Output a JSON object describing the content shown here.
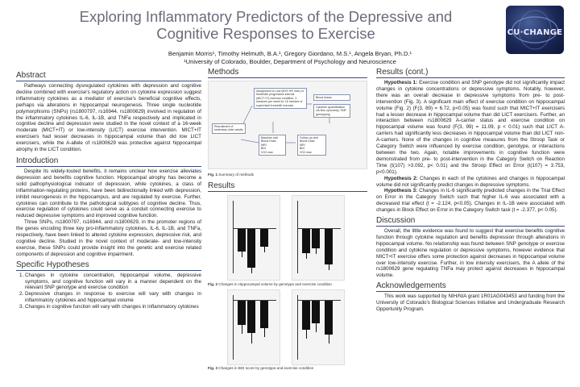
{
  "title": {
    "line1": "Exploring Inflammatory Predictors of the Depressive and",
    "line2": "Cognitive Responses to Exercise"
  },
  "authors": "Benjamin Morris¹, Timothy Helmuth, B.A.¹, Gregory Giordano, M.S.¹, Angela Bryan, Ph.D.¹",
  "affiliation": "¹University of Colorado, Boulder, Department of Psychology and Neuroscience",
  "logo": {
    "text": "CU·CHANGE",
    "icon": "cu-change-logo"
  },
  "sections": {
    "abstract": {
      "heading": "Abstract",
      "text": "Pathways connecting dysregulated cytokines with depression and cognitive decline combined with exercise's regulatory action on cytokine expression suggest inflammatory cytokines as a mediator of exercise's beneficial cognitive effects, perhaps via alterations in hippocampal neurogenesis. Three single nucleotide polymorphisms (SNPs) (rs1800797, rs16944, rs1800629) involved in regulation of the inflammatory cytokines IL-6, IL-1B, and TNFa respectively and implicated in cognitive decline and depression were studied in the novel context of a 16-week moderate (MICT+IT) or low-intensity (LICT) exercise intervention. MICT+IT exercisers had lesser decreases in hippocampal volume than did low LICT exercisers, while the A-allele of rs1800629 was protective against hippocampal atrophy in the LICT condition."
    },
    "introduction": {
      "heading": "Introduction",
      "p1": "Despite its widely-touted benefits, it remains unclear how exercise alleviates depression and benefits cognitive function. Hippocampal atrophy has become a solid pathophysiological indicator of depression, while cytokines, a class of inflammation-regulating proteins, have been bidirectionally linked with depression, inhibit neurogenesis in the hippocampus, and are regulated by exercise. Further, cytokines can contribute to the pathological subtypes of cognitive decline. Thus, exercise regulation of cytokines could serve as a conduit connecting exercise to reduced depressive symptoms and improved cognitive function.",
      "p2": "Three SNPs, rs1800797, rs16944, and rs1800629, in the promoter regions of the genes encoding three key pro-inflammatory cytokines, IL-6, IL-1B, and TNFa, respectively, have been linked to altered cytokine expression, depressive risk, and cognitive decline. Studied in the novel context of moderate- and low-intensity exercise, these SNPs could provide insight into the genetic and exercise related components of depression and cognitive impairment."
    },
    "hypotheses": {
      "heading": "Specific Hypotheses",
      "items": [
        "Changes in cytokine concentration, hippocampal volume, depressive symptoms, and cognitive function will vary in a manner dependent on the relevant SNP genotype and exercise condition",
        "Depressive changes in response to exercise will vary with changes in inflammatory cytokines and hippocampal volume",
        "Changes in cognitive function will vary with changes in inflammatory cytokines"
      ]
    },
    "methods": {
      "heading": "Methods",
      "fig_caption_label": "Fig. 1",
      "fig_caption": "Summary of methods",
      "boxes": {
        "recruit": "Recruitment of sedentary older adults",
        "assign": "Assignment to Low (60% HR max) or Moderate progressive interval (MICT+IT) exercise condition; 3 sessions per week for 16 minutes of supervised treadmill exercise",
        "blood": "Blood draws",
        "cytokine": "Cytokine quantification via flow cytometry; SNP genotyping",
        "baseline": "Baseline visit",
        "baseline_items": [
          "Blood Draw",
          "MRI",
          "BDI",
          "VO2 max"
        ],
        "followup": "Follow-up visit",
        "followup_items": [
          "Blood Draw",
          "MRI",
          "BDI",
          "VO2 max"
        ]
      }
    },
    "results": {
      "heading": "Results",
      "fig2_label": "Fig. 2",
      "fig2_caption": "Changes in Hippocampal volume by genotype and exercise condition",
      "fig3_label": "Fig. 3",
      "fig3_caption": "Changes in BDI score by genotype and exercise condition"
    },
    "results_cont": {
      "heading": "Results (cont.)",
      "h1_label": "Hypothesis 1:",
      "h1_text": "Exercise condition and SNP genotype did not significantly impact changes in cytokine concentrations or depressive symptoms. Notably, however, there was an overall decrease in depressive symptoms from pre- to post-intervention (Fig. 3). A significant main effect of exercise condition on hippocampal volume (Fig. 2) (F(3, 89) = 6.72, p<0.05) was found such that MICT+IT exercisers had a lesser decrease in hippocampal volume than did LICT exercisers. Further, an interaction between rs1800629 A-carrier status and exercise condition on hippocampal volume was found (F(3, 99) = 11.09, p < 0.01) such that LICT A-carriers had significantly less decreases in hippocampal volume than did LICT non-A-carriers. None of the changes in cognitive measures from the Stroop Task or Category Switch were influenced by exercise condition, genotype, or interactions between the two. Again, notable improvements in cognitive function were demonstrated from pre- to post-intervention in the Category Switch on Reaction Time (t(107) >3.092, p< 0.01) and the Stroop Effect on Error (t(107) = 3.753, p<0.001).",
      "h2_label": "Hypothesis 2:",
      "h2_text": "Changes in each of the cytokines and changes in hippocampal volume did not significantly predict changes in depressive symptoms.",
      "h3_label": "Hypothesis 3:",
      "h3_text": "Changes in IL-6 significantly predicted changes in the Trial Effect on Error in the Category Switch such that higher IL-6 was associated with a decreased trial effect (t = -2.124, p<0.05). Changes in IL-1B were associated with changes in Block Effect on Error in the Category Switch task (t = -2.377, p< 0.05)."
    },
    "discussion": {
      "heading": "Discussion",
      "text": "Overall, the little evidence was found to suggest that exercise benefits cognitive function through cytokine regulation and benefits depression through alterations in hippocampal volume. No relationship was found between SNP genotype or exercise condition and cytokine regulation or depressive symptoms, however evidence that MICT+IT exercise offers some protection against decreases in hippocampal volume over low-intensity exercise. Further, in low intensity exercisers, the A allele of the rs1800629 gene regulating TNFa may protect against decreases in hippocampal volume."
    },
    "acknowledgements": {
      "heading": "Acknowledgements",
      "text": "This work was supported by NIH/NIA grant 1R01AG043453 and funding from the University of Colorado's Biological Sciences Initiative and Undergraduate Research Opportunity Program."
    }
  },
  "colors": {
    "header_rule": "#3a4a7a",
    "title": "#6b6b7a"
  }
}
